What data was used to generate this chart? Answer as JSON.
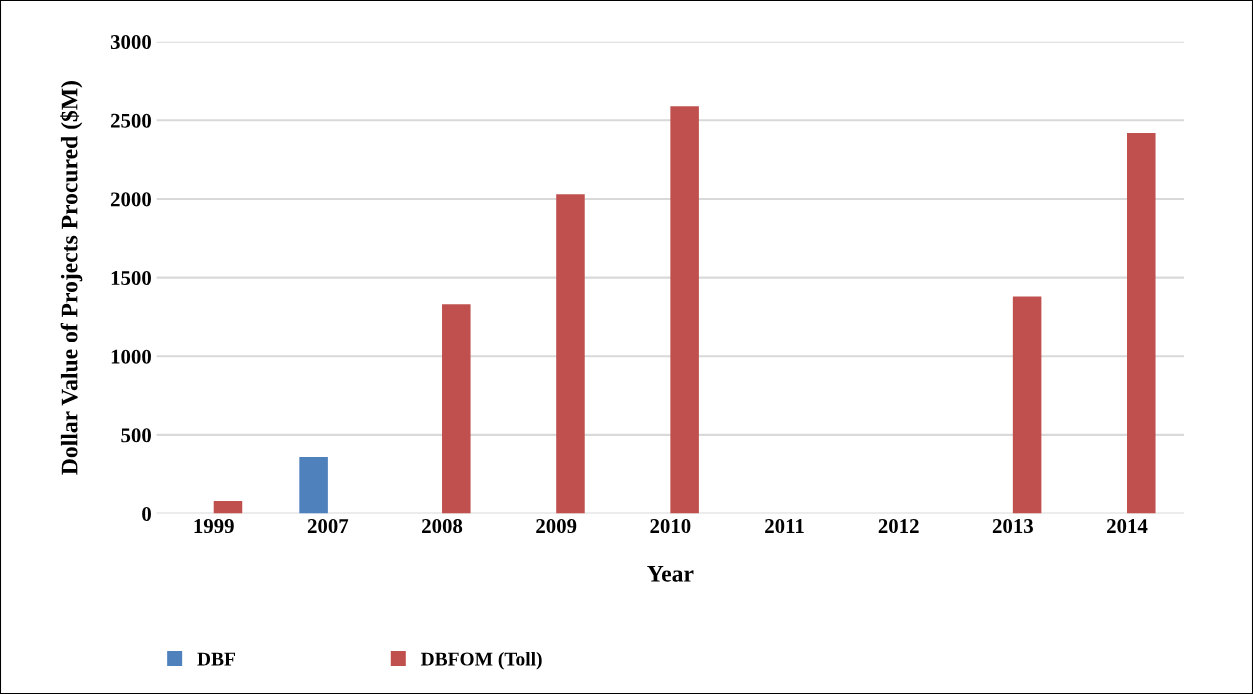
{
  "chart_data": {
    "type": "bar",
    "xlabel": "Year",
    "ylabel": "Dollar Value of Projects Procured ($M)",
    "categories": [
      "1999",
      "2007",
      "2008",
      "2009",
      "2010",
      "2011",
      "2012",
      "2013",
      "2014"
    ],
    "series": [
      {
        "name": "DBF",
        "color": "#4f81bd",
        "values": [
          null,
          360,
          null,
          null,
          null,
          null,
          null,
          null,
          null
        ]
      },
      {
        "name": "DBFOM (Toll)",
        "color": "#c0504d",
        "values": [
          80,
          null,
          1330,
          2030,
          2590,
          null,
          null,
          1380,
          2420
        ]
      }
    ],
    "ylim": [
      0,
      3000
    ],
    "yticks": [
      0,
      500,
      1000,
      1500,
      2000,
      2500,
      3000
    ],
    "grid": "y",
    "legend": "bottom"
  }
}
